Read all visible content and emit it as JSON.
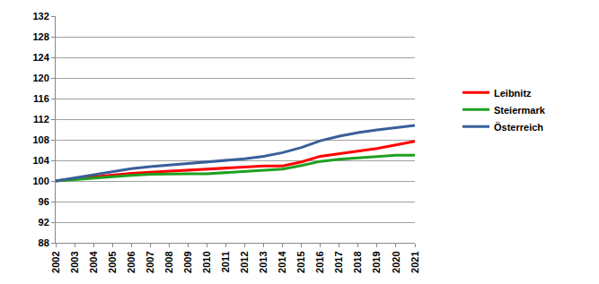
{
  "chart_data": {
    "type": "line",
    "categories": [
      "2002",
      "2003",
      "2004",
      "2005",
      "2006",
      "2007",
      "2008",
      "2009",
      "2010",
      "2011",
      "2012",
      "2013",
      "2014",
      "2015",
      "2016",
      "2017",
      "2018",
      "2019",
      "2020",
      "2021"
    ],
    "series": [
      {
        "name": "Leibnitz",
        "color": "#ff0000",
        "values": [
          100,
          100.5,
          100.8,
          101.2,
          101.5,
          101.7,
          101.9,
          102.1,
          102.3,
          102.5,
          102.6,
          102.9,
          102.9,
          103.7,
          104.8,
          105.3,
          105.7,
          106.3,
          107.0,
          107.7
        ]
      },
      {
        "name": "Steiermark",
        "color": "#1fa01f",
        "values": [
          100,
          100.3,
          100.5,
          100.8,
          101.1,
          101.3,
          101.4,
          101.4,
          101.4,
          101.6,
          101.8,
          102.0,
          102.3,
          103.0,
          103.8,
          104.2,
          104.5,
          104.7,
          105.0,
          105.0
        ]
      },
      {
        "name": "Österreich",
        "color": "#3a5f9a",
        "values": [
          100,
          100.6,
          101.1,
          101.8,
          102.4,
          102.8,
          103.1,
          103.4,
          103.7,
          104.0,
          104.3,
          104.8,
          105.5,
          106.5,
          107.8,
          108.7,
          109.4,
          109.9,
          110.4,
          110.8
        ]
      }
    ],
    "ylim": [
      88,
      132
    ],
    "yticks": [
      88,
      92,
      96,
      100,
      104,
      108,
      112,
      116,
      120,
      124,
      128,
      132
    ],
    "grid": true,
    "legend": "right"
  }
}
